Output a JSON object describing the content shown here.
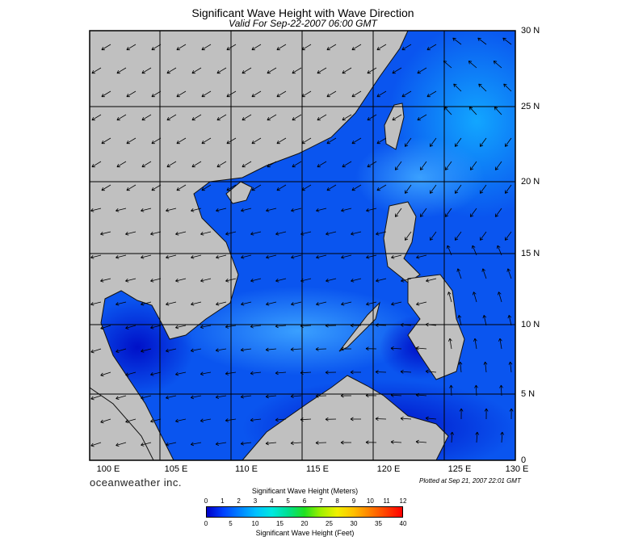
{
  "title": "Significant Wave Height with Wave Direction",
  "subtitle": "Valid For Sep-22-2007 06:00 GMT",
  "map": {
    "region": "South China Sea",
    "lon_range": [
      100,
      130
    ],
    "lat_range": [
      0,
      30
    ],
    "lat_labels": [
      "30 N",
      "25 N",
      "20 N",
      "15 N",
      "10 N",
      "5 N",
      "0"
    ],
    "lon_labels": [
      "100 E",
      "105 E",
      "110 E",
      "115 E",
      "120 E",
      "125 E",
      "130 E"
    ],
    "land_color": "#c0c0c0",
    "grid": true
  },
  "brand": "oceanweather inc.",
  "plotted": "Plotted at Sep 21, 2007 22:01 GMT",
  "colorbar": {
    "title_meters": "Significant Wave Height (Meters)",
    "title_feet": "Significant Wave Height (Feet)",
    "meter_ticks": [
      "0",
      "1",
      "2",
      "3",
      "4",
      "5",
      "6",
      "7",
      "8",
      "9",
      "10",
      "11",
      "12"
    ],
    "feet_ticks": [
      "0",
      "5",
      "10",
      "15",
      "20",
      "25",
      "30",
      "35",
      "40"
    ],
    "colors": [
      "#0000c8",
      "#0040ff",
      "#0080ff",
      "#00c0ff",
      "#00e8e0",
      "#00e090",
      "#20e020",
      "#a0f000",
      "#f0f000",
      "#ffc000",
      "#ff8000",
      "#ff4000",
      "#ff0000"
    ]
  }
}
